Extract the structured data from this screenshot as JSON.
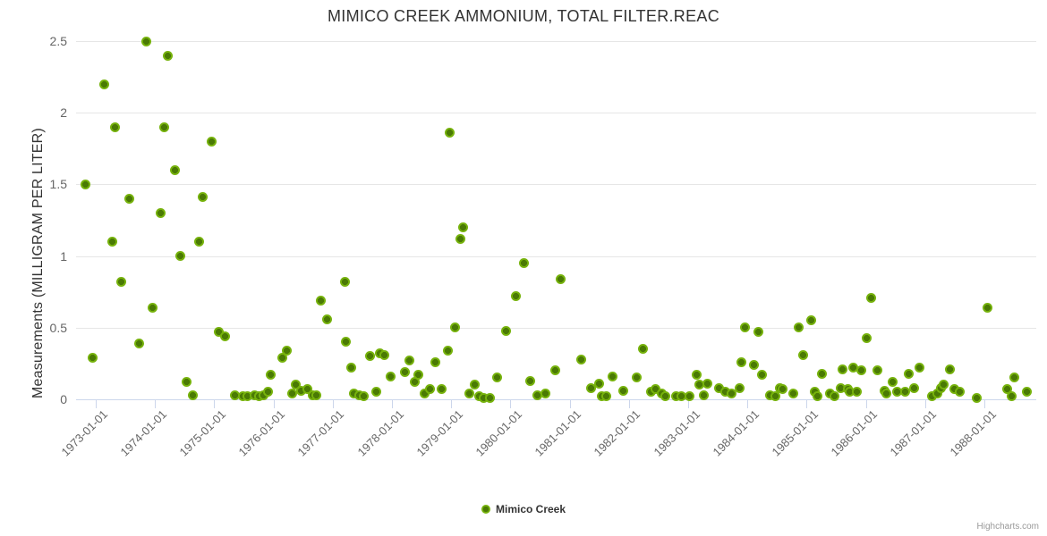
{
  "title": "MIMICO CREEK AMMONIUM, TOTAL FILTER.REAC",
  "legend": {
    "label": "Mimico Creek"
  },
  "credits_label": "Highcharts.com",
  "chart_data": {
    "type": "scatter",
    "title": "MIMICO CREEK AMMONIUM, TOTAL FILTER.REAC",
    "xlabel": "",
    "ylabel": "Measurements (MILLIGRAM PER LITER)",
    "ylim": [
      0,
      2.5
    ],
    "grid": true,
    "legend_position": "bottom-center",
    "y_ticks": [
      0,
      0.5,
      1,
      1.5,
      2,
      2.5
    ],
    "y_tick_labels": [
      "0",
      "0.5",
      "1",
      "1.5",
      "2",
      "2.5"
    ],
    "x_tick_years": [
      1973,
      1974,
      1975,
      1976,
      1977,
      1978,
      1979,
      1980,
      1981,
      1982,
      1983,
      1984,
      1985,
      1986,
      1987,
      1988
    ],
    "x_ticks": [
      "1973-01-01",
      "1974-01-01",
      "1975-01-01",
      "1976-01-01",
      "1977-01-01",
      "1978-01-01",
      "1979-01-01",
      "1980-01-01",
      "1981-01-01",
      "1982-01-01",
      "1983-01-01",
      "1984-01-01",
      "1985-01-01",
      "1986-01-01",
      "1987-01-01",
      "1988-01-01"
    ],
    "marker": {
      "fill_outer": "#76b20c",
      "fill_inner": "#4a7a04"
    },
    "series": [
      {
        "name": "Mimico Creek",
        "points_format": "[decimal_year, mg_per_liter]",
        "points": [
          [
            1972.83,
            1.5
          ],
          [
            1972.94,
            0.29
          ],
          [
            1973.15,
            2.2
          ],
          [
            1973.28,
            1.1
          ],
          [
            1973.33,
            1.9
          ],
          [
            1973.43,
            0.82
          ],
          [
            1973.57,
            1.4
          ],
          [
            1973.74,
            0.39
          ],
          [
            1973.85,
            2.5
          ],
          [
            1973.96,
            0.64
          ],
          [
            1974.09,
            1.3
          ],
          [
            1974.16,
            1.9
          ],
          [
            1974.22,
            2.4
          ],
          [
            1974.33,
            1.6
          ],
          [
            1974.42,
            1.0
          ],
          [
            1974.54,
            0.12
          ],
          [
            1974.64,
            0.03
          ],
          [
            1974.74,
            1.1
          ],
          [
            1974.8,
            1.41
          ],
          [
            1974.96,
            1.8
          ],
          [
            1975.08,
            0.47
          ],
          [
            1975.19,
            0.44
          ],
          [
            1975.35,
            0.03
          ],
          [
            1975.49,
            0.02
          ],
          [
            1975.56,
            0.02
          ],
          [
            1975.68,
            0.03
          ],
          [
            1975.76,
            0.02
          ],
          [
            1975.83,
            0.03
          ],
          [
            1975.91,
            0.05
          ],
          [
            1975.96,
            0.17
          ],
          [
            1976.15,
            0.29
          ],
          [
            1976.22,
            0.34
          ],
          [
            1976.31,
            0.04
          ],
          [
            1976.37,
            0.1
          ],
          [
            1976.47,
            0.06
          ],
          [
            1976.57,
            0.07
          ],
          [
            1976.66,
            0.03
          ],
          [
            1976.72,
            0.03
          ],
          [
            1976.8,
            0.69
          ],
          [
            1976.9,
            0.56
          ],
          [
            1977.2,
            0.82
          ],
          [
            1977.22,
            0.4
          ],
          [
            1977.31,
            0.22
          ],
          [
            1977.36,
            0.04
          ],
          [
            1977.45,
            0.03
          ],
          [
            1977.53,
            0.02
          ],
          [
            1977.63,
            0.3
          ],
          [
            1977.73,
            0.05
          ],
          [
            1977.8,
            0.32
          ],
          [
            1977.87,
            0.31
          ],
          [
            1977.97,
            0.16
          ],
          [
            1978.22,
            0.19
          ],
          [
            1978.3,
            0.27
          ],
          [
            1978.38,
            0.12
          ],
          [
            1978.44,
            0.17
          ],
          [
            1978.55,
            0.04
          ],
          [
            1978.64,
            0.07
          ],
          [
            1978.73,
            0.26
          ],
          [
            1978.84,
            0.07
          ],
          [
            1978.94,
            0.34
          ],
          [
            1978.97,
            1.86
          ],
          [
            1979.06,
            0.5
          ],
          [
            1979.16,
            1.12
          ],
          [
            1979.2,
            1.2
          ],
          [
            1979.31,
            0.04
          ],
          [
            1979.4,
            0.1
          ],
          [
            1979.47,
            0.02
          ],
          [
            1979.55,
            0.01
          ],
          [
            1979.65,
            0.01
          ],
          [
            1979.78,
            0.15
          ],
          [
            1979.93,
            0.48
          ],
          [
            1980.09,
            0.72
          ],
          [
            1980.23,
            0.95
          ],
          [
            1980.33,
            0.13
          ],
          [
            1980.45,
            0.03
          ],
          [
            1980.59,
            0.04
          ],
          [
            1980.75,
            0.2
          ],
          [
            1980.85,
            0.84
          ],
          [
            1981.2,
            0.28
          ],
          [
            1981.36,
            0.08
          ],
          [
            1981.49,
            0.11
          ],
          [
            1981.54,
            0.02
          ],
          [
            1981.62,
            0.02
          ],
          [
            1981.72,
            0.16
          ],
          [
            1981.9,
            0.06
          ],
          [
            1982.13,
            0.15
          ],
          [
            1982.23,
            0.35
          ],
          [
            1982.37,
            0.05
          ],
          [
            1982.45,
            0.07
          ],
          [
            1982.56,
            0.04
          ],
          [
            1982.62,
            0.02
          ],
          [
            1982.79,
            0.02
          ],
          [
            1982.89,
            0.02
          ],
          [
            1983.03,
            0.02
          ],
          [
            1983.15,
            0.17
          ],
          [
            1983.19,
            0.1
          ],
          [
            1983.26,
            0.03
          ],
          [
            1983.33,
            0.11
          ],
          [
            1983.52,
            0.08
          ],
          [
            1983.62,
            0.05
          ],
          [
            1983.73,
            0.04
          ],
          [
            1983.87,
            0.08
          ],
          [
            1983.9,
            0.26
          ],
          [
            1983.96,
            0.5
          ],
          [
            1984.11,
            0.24
          ],
          [
            1984.18,
            0.47
          ],
          [
            1984.24,
            0.17
          ],
          [
            1984.38,
            0.03
          ],
          [
            1984.48,
            0.02
          ],
          [
            1984.55,
            0.08
          ],
          [
            1984.6,
            0.07
          ],
          [
            1984.78,
            0.04
          ],
          [
            1984.87,
            0.5
          ],
          [
            1984.94,
            0.31
          ],
          [
            1985.07,
            0.55
          ],
          [
            1985.14,
            0.05
          ],
          [
            1985.18,
            0.02
          ],
          [
            1985.26,
            0.18
          ],
          [
            1985.4,
            0.04
          ],
          [
            1985.47,
            0.02
          ],
          [
            1985.58,
            0.08
          ],
          [
            1985.61,
            0.21
          ],
          [
            1985.7,
            0.07
          ],
          [
            1985.73,
            0.05
          ],
          [
            1985.78,
            0.22
          ],
          [
            1985.84,
            0.05
          ],
          [
            1985.93,
            0.2
          ],
          [
            1986.02,
            0.43
          ],
          [
            1986.09,
            0.71
          ],
          [
            1986.2,
            0.2
          ],
          [
            1986.32,
            0.06
          ],
          [
            1986.35,
            0.04
          ],
          [
            1986.45,
            0.12
          ],
          [
            1986.53,
            0.05
          ],
          [
            1986.66,
            0.05
          ],
          [
            1986.72,
            0.18
          ],
          [
            1986.82,
            0.08
          ],
          [
            1986.9,
            0.22
          ],
          [
            1987.11,
            0.02
          ],
          [
            1987.2,
            0.04
          ],
          [
            1987.27,
            0.08
          ],
          [
            1987.31,
            0.1
          ],
          [
            1987.42,
            0.21
          ],
          [
            1987.49,
            0.07
          ],
          [
            1987.58,
            0.05
          ],
          [
            1987.87,
            0.01
          ],
          [
            1988.05,
            0.64
          ],
          [
            1988.39,
            0.07
          ],
          [
            1988.46,
            0.02
          ],
          [
            1988.51,
            0.15
          ],
          [
            1988.72,
            0.05
          ]
        ]
      }
    ]
  }
}
